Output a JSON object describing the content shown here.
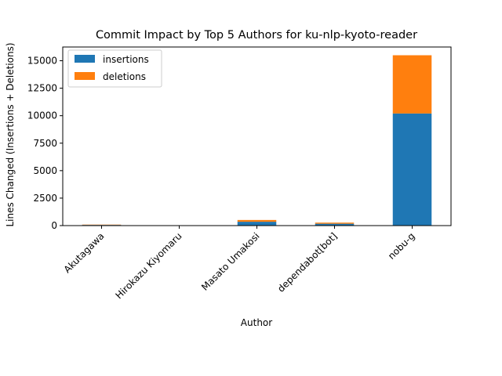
{
  "chart_data": {
    "type": "bar",
    "stacked": true,
    "title": "Commit Impact by Top 5 Authors for ku-nlp-kyoto-reader",
    "xlabel": "Author",
    "ylabel": "Lines Changed (Insertions + Deletions)",
    "categories": [
      "Akutagawa",
      "Hirokazu Kiyomaru",
      "Masato Umakosi",
      "dependabot[bot]",
      "nobu-g"
    ],
    "series": [
      {
        "name": "insertions",
        "color": "#1f77b4",
        "values": [
          60,
          10,
          350,
          170,
          10200
        ]
      },
      {
        "name": "deletions",
        "color": "#ff7f0e",
        "values": [
          30,
          5,
          160,
          100,
          5300
        ]
      }
    ],
    "ylim": [
      0,
      16250
    ],
    "yticks": [
      "0",
      "2500",
      "5000",
      "7500",
      "10000",
      "12500",
      "15000"
    ],
    "ytick_values": [
      0,
      2500,
      5000,
      7500,
      10000,
      12500,
      15000
    ],
    "grid": false,
    "legend_position": "upper-left"
  }
}
